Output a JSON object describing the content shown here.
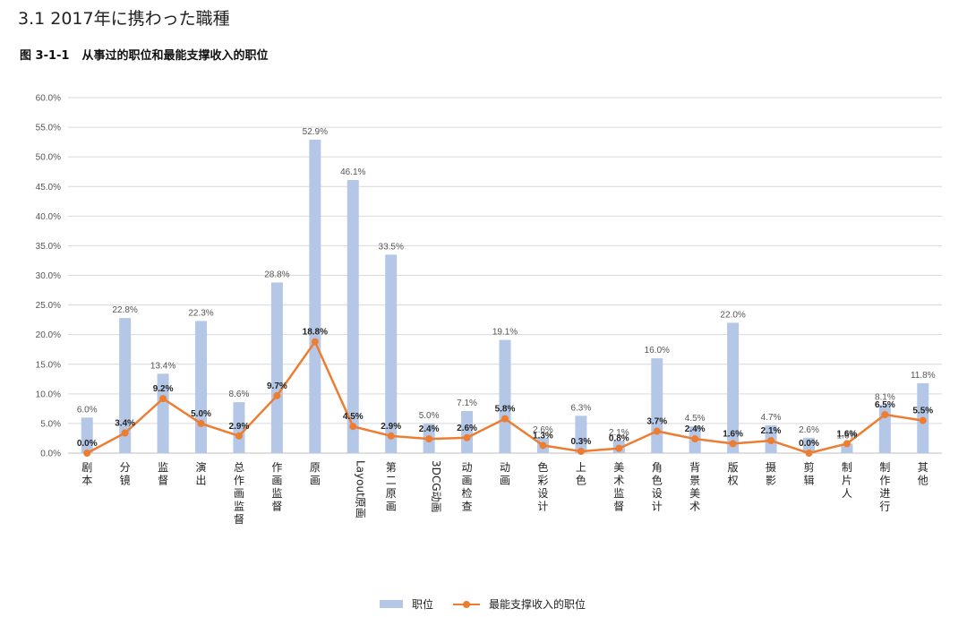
{
  "header": {
    "section_title": "3.1 2017年に携わった職種",
    "caption_number": "图 3-1-1",
    "caption_text": "从事过的职位和最能支撑收入的职位"
  },
  "chart_data": {
    "type": "bar",
    "categories": [
      "剧本",
      "分镜",
      "监督",
      "演出",
      "总作画监督",
      "作画监督",
      "原画",
      "Layout原画",
      "第二原画",
      "3DCG动画",
      "动画检查",
      "动画",
      "色彩设计",
      "上色",
      "美术监督",
      "角色设计",
      "背景美术",
      "版权",
      "摄影",
      "剪辑",
      "制片人",
      "制作进行",
      "其他"
    ],
    "series": [
      {
        "name": "职位",
        "type": "bar",
        "color": "#b4c7e7",
        "values": [
          6.0,
          22.8,
          13.4,
          22.3,
          8.6,
          28.8,
          52.9,
          46.1,
          33.5,
          5.0,
          7.1,
          19.1,
          2.6,
          6.3,
          2.1,
          16.0,
          4.5,
          22.0,
          4.7,
          2.6,
          1.6,
          8.1,
          11.8
        ],
        "labels": [
          "6.0%",
          "22.8%",
          "13.4%",
          "22.3%",
          "8.6%",
          "28.8%",
          "52.9%",
          "46.1%",
          "33.5%",
          "5.0%",
          "7.1%",
          "19.1%",
          "2.6%",
          "6.3%",
          "2.1%",
          "16.0%",
          "4.5%",
          "22.0%",
          "4.7%",
          "2.6%",
          "1.6%",
          "8.1%",
          "11.8%"
        ]
      },
      {
        "name": "最能支撑收入的职位",
        "type": "line",
        "color": "#ed7d31",
        "values": [
          0.0,
          3.4,
          9.2,
          5.0,
          2.9,
          9.7,
          18.8,
          4.5,
          2.9,
          2.4,
          2.6,
          5.8,
          1.3,
          0.3,
          0.8,
          3.7,
          2.4,
          1.6,
          2.1,
          0.0,
          1.6,
          6.5,
          5.5
        ],
        "labels": [
          "0.0%",
          "3.4%",
          "9.2%",
          "5.0%",
          "2.9%",
          "9.7%",
          "18.8%",
          "4.5%",
          "2.9%",
          "2.4%",
          "2.6%",
          "5.8%",
          "1.3%",
          "0.3%",
          "0.8%",
          "3.7%",
          "2.4%",
          "1.6%",
          "2.1%",
          "0.0%",
          "1.6%",
          "6.5%",
          "5.5%"
        ]
      }
    ],
    "ylim": [
      0,
      60
    ],
    "y_ticks": [
      "0.0%",
      "5.0%",
      "10.0%",
      "15.0%",
      "20.0%",
      "25.0%",
      "30.0%",
      "35.0%",
      "40.0%",
      "45.0%",
      "50.0%",
      "55.0%",
      "60.0%"
    ],
    "grid": true,
    "legend_position": "bottom-center"
  }
}
